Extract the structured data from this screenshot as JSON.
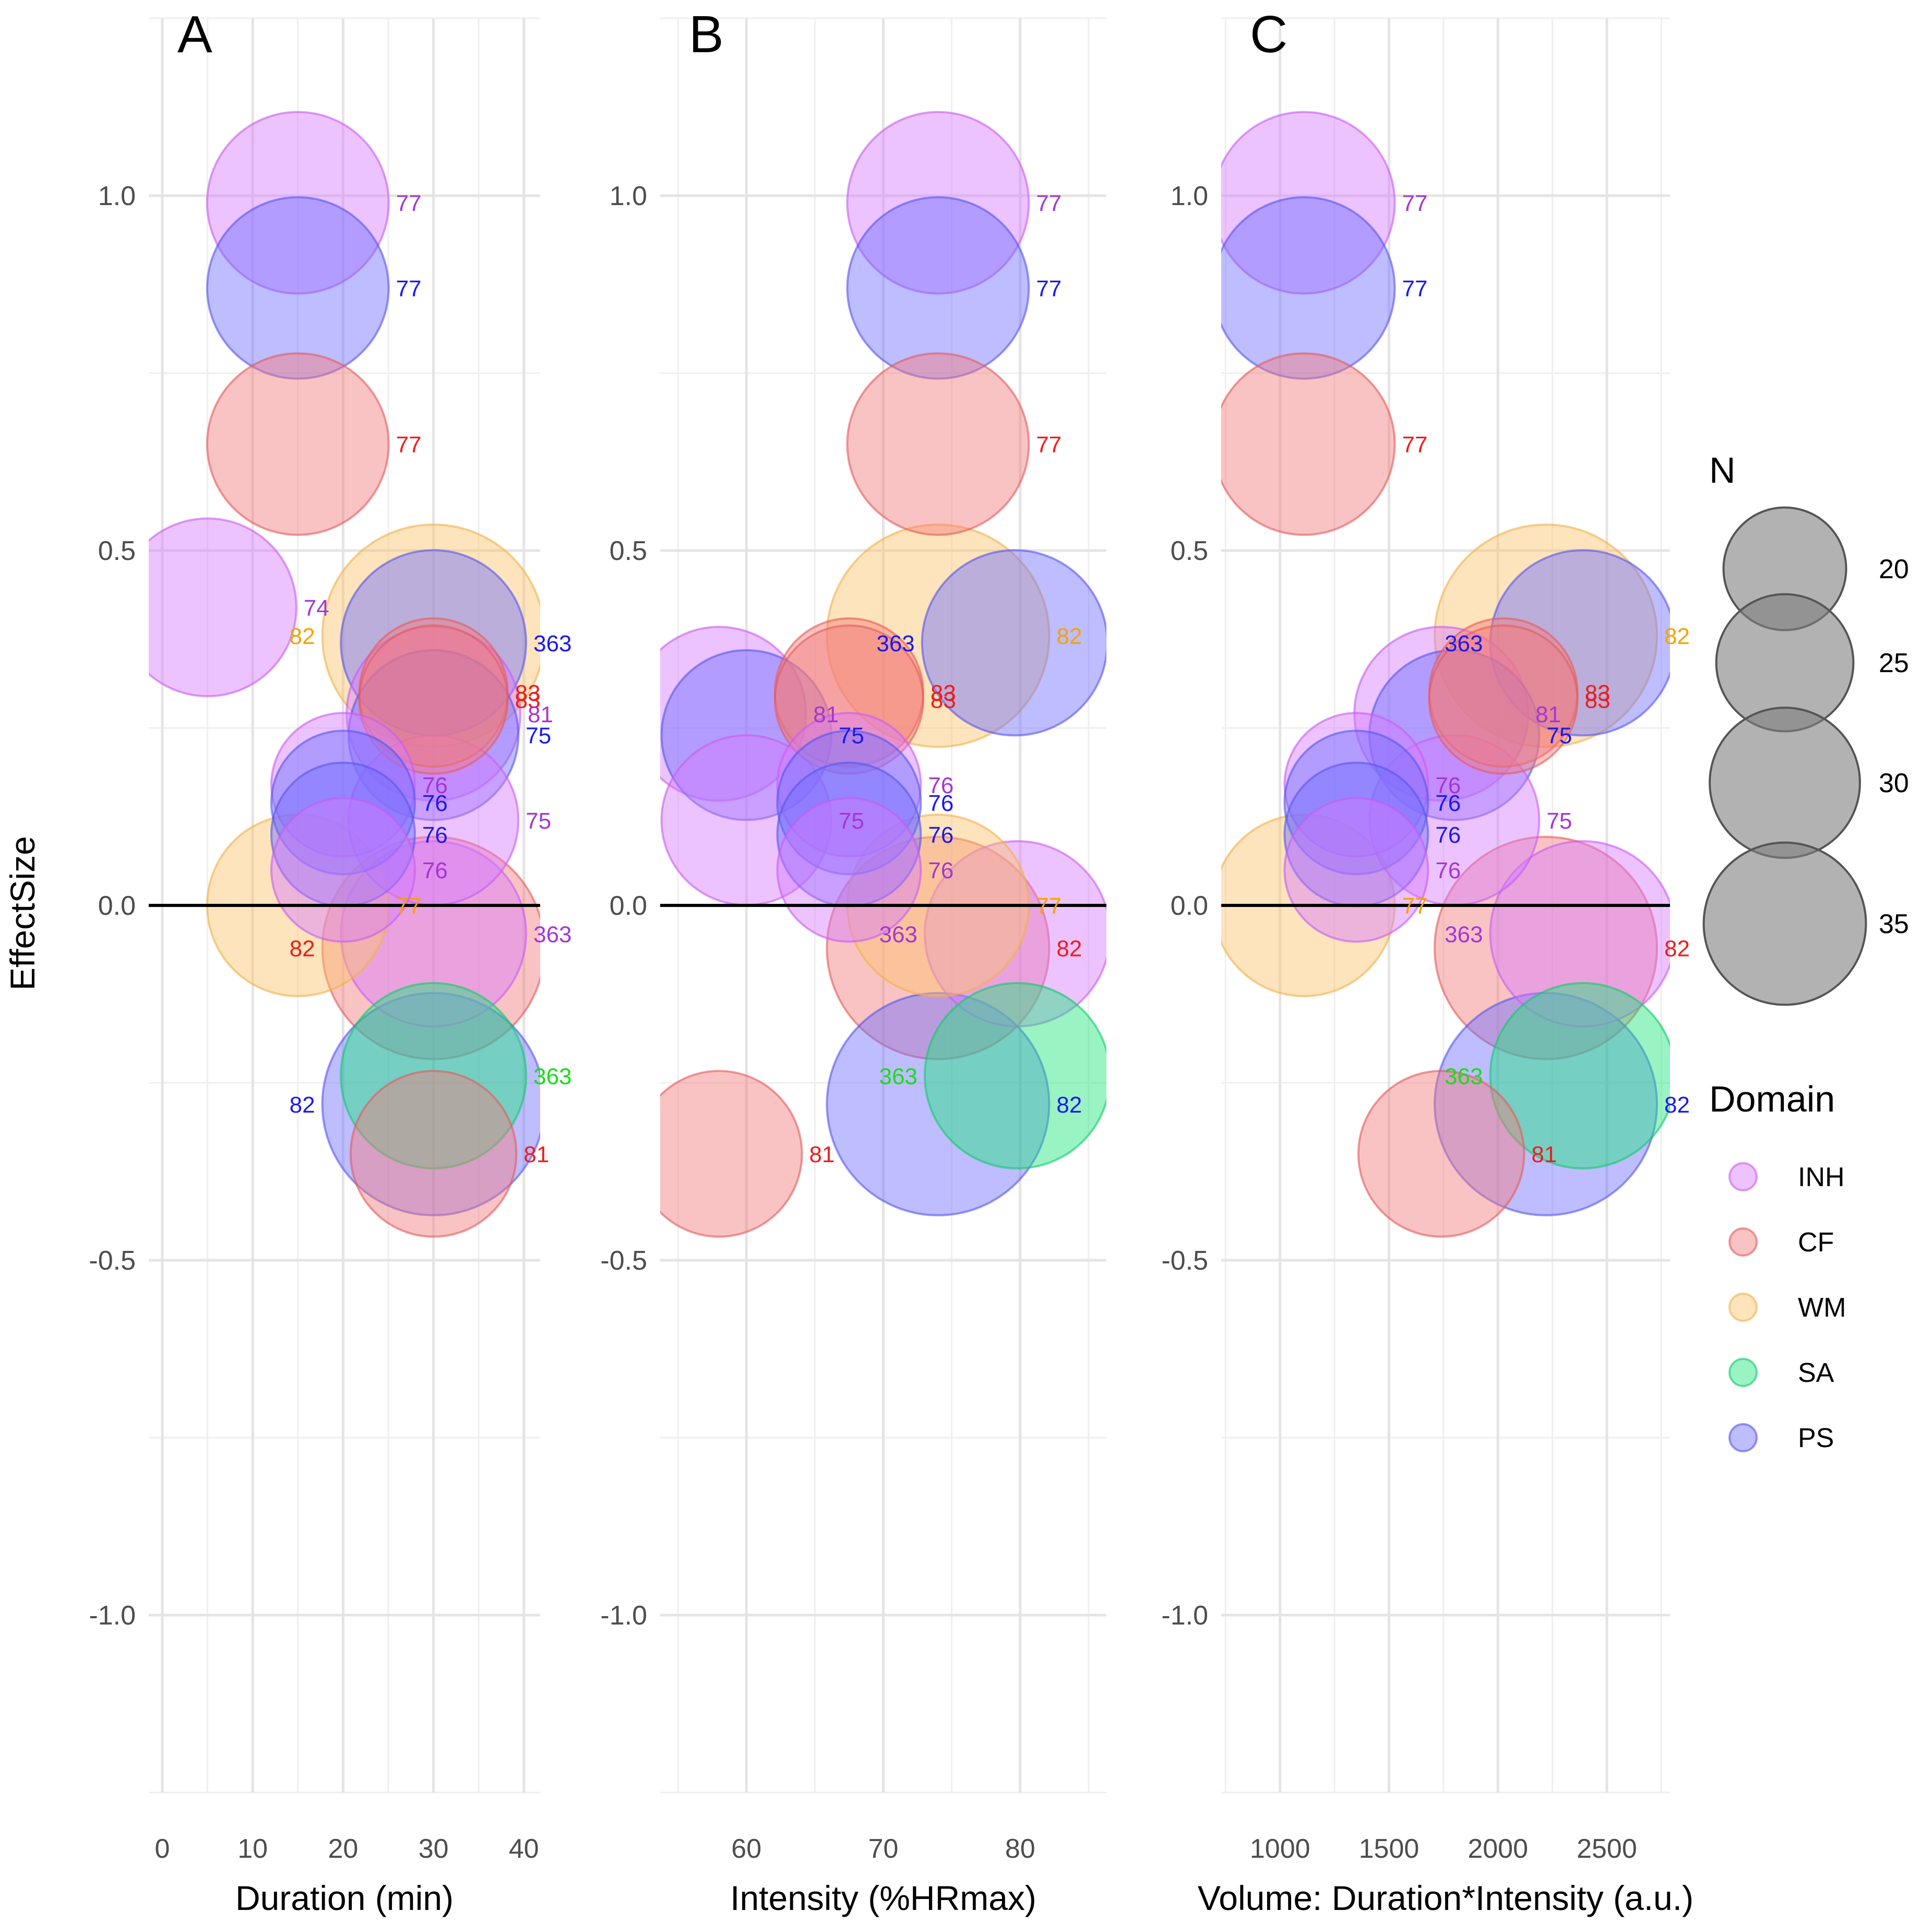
{
  "figure": {
    "ylabel": "EffectSize",
    "yticks": [
      1.0,
      0.5,
      0.0,
      -0.5,
      -1.0
    ],
    "ytick_labels": [
      "1.0",
      "0.5",
      "0.0",
      "-0.5",
      "-1.0"
    ],
    "zero_line": 0
  },
  "legend": {
    "size_title": "N",
    "size_entries": [
      {
        "n": 20,
        "label": "20"
      },
      {
        "n": 25,
        "label": "25"
      },
      {
        "n": 30,
        "label": "30"
      },
      {
        "n": 35,
        "label": "35"
      }
    ],
    "domain_title": "Domain",
    "domains": [
      {
        "key": "INH",
        "label": "INH",
        "fill": "#d77bff",
        "stroke": "#c65cf2",
        "text": "#a436d6"
      },
      {
        "key": "CF",
        "label": "CF",
        "fill": "#f57a7a",
        "stroke": "#e55a5a",
        "text": "#f01c1c"
      },
      {
        "key": "WM",
        "label": "WM",
        "fill": "#fcc46a",
        "stroke": "#f0b04a",
        "text": "#f5a300"
      },
      {
        "key": "SA",
        "label": "SA",
        "fill": "#1ee57a",
        "stroke": "#10c96a",
        "text": "#16e016"
      },
      {
        "key": "PS",
        "label": "PS",
        "fill": "#6c6cff",
        "stroke": "#5555ee",
        "text": "#1a1aee"
      }
    ]
  },
  "chart_data": [
    {
      "panel": "A",
      "type": "scatter",
      "title": "A",
      "xlabel": "Duration (min)",
      "ylabel": "EffectSize",
      "xlim": [
        -1.5,
        41.8
      ],
      "ylim": [
        -1.25,
        1.25
      ],
      "xticks": [
        0,
        10,
        20,
        30,
        40
      ],
      "xtick_labels": [
        "0",
        "10",
        "20",
        "30",
        "40"
      ],
      "points": [
        {
          "domain": "INH",
          "x": 15,
          "y": 0.99,
          "n": 24,
          "label": "77"
        },
        {
          "domain": "PS",
          "x": 15,
          "y": 0.87,
          "n": 24,
          "label": "77"
        },
        {
          "domain": "CF",
          "x": 15,
          "y": 0.65,
          "n": 24,
          "label": "77"
        },
        {
          "domain": "INH",
          "x": 5,
          "y": 0.42,
          "n": 23,
          "label": "74"
        },
        {
          "domain": "WM",
          "x": 30,
          "y": 0.38,
          "n": 36,
          "label": "82"
        },
        {
          "domain": "PS",
          "x": 30,
          "y": 0.37,
          "n": 25,
          "label": "363"
        },
        {
          "domain": "CF",
          "x": 30,
          "y": 0.3,
          "n": 16,
          "label": "83"
        },
        {
          "domain": "CF",
          "x": 30,
          "y": 0.29,
          "n": 16,
          "label": "83"
        },
        {
          "domain": "INH",
          "x": 30,
          "y": 0.27,
          "n": 22,
          "label": "81"
        },
        {
          "domain": "PS",
          "x": 30,
          "y": 0.24,
          "n": 21,
          "label": "75"
        },
        {
          "domain": "INH",
          "x": 20,
          "y": 0.17,
          "n": 15,
          "label": "76"
        },
        {
          "domain": "PS",
          "x": 20,
          "y": 0.145,
          "n": 15,
          "label": "76"
        },
        {
          "domain": "INH",
          "x": 30,
          "y": 0.12,
          "n": 21,
          "label": "75"
        },
        {
          "domain": "PS",
          "x": 20,
          "y": 0.1,
          "n": 15,
          "label": "76"
        },
        {
          "domain": "INH",
          "x": 20,
          "y": 0.05,
          "n": 15,
          "label": "76"
        },
        {
          "domain": "WM",
          "x": 15,
          "y": 0.0,
          "n": 24,
          "label": "77"
        },
        {
          "domain": "INH",
          "x": 30,
          "y": -0.04,
          "n": 25,
          "label": "363"
        },
        {
          "domain": "CF",
          "x": 30,
          "y": -0.06,
          "n": 36,
          "label": "82"
        },
        {
          "domain": "SA",
          "x": 30,
          "y": -0.24,
          "n": 25,
          "label": "363"
        },
        {
          "domain": "PS",
          "x": 30,
          "y": -0.28,
          "n": 36,
          "label": "82"
        },
        {
          "domain": "CF",
          "x": 30,
          "y": -0.35,
          "n": 20,
          "label": "81"
        }
      ]
    },
    {
      "panel": "B",
      "type": "scatter",
      "title": "B",
      "xlabel": "Intensity (%HRmax)",
      "ylabel": "",
      "xlim": [
        53.7,
        86.3
      ],
      "ylim": [
        -1.25,
        1.25
      ],
      "xticks": [
        60,
        70,
        80
      ],
      "xtick_labels": [
        "60",
        "70",
        "80"
      ],
      "points": [
        {
          "domain": "INH",
          "x": 74,
          "y": 0.99,
          "n": 24,
          "label": "77"
        },
        {
          "domain": "PS",
          "x": 74,
          "y": 0.87,
          "n": 24,
          "label": "77"
        },
        {
          "domain": "CF",
          "x": 74,
          "y": 0.65,
          "n": 24,
          "label": "77"
        },
        {
          "domain": "WM",
          "x": 74,
          "y": 0.38,
          "n": 36,
          "label": "82"
        },
        {
          "domain": "PS",
          "x": 79.6,
          "y": 0.37,
          "n": 25,
          "label": "363"
        },
        {
          "domain": "CF",
          "x": 67.5,
          "y": 0.3,
          "n": 16,
          "label": "83"
        },
        {
          "domain": "CF",
          "x": 67.5,
          "y": 0.29,
          "n": 16,
          "label": "83"
        },
        {
          "domain": "INH",
          "x": 58,
          "y": 0.27,
          "n": 22,
          "label": "81"
        },
        {
          "domain": "PS",
          "x": 60,
          "y": 0.24,
          "n": 21,
          "label": "75"
        },
        {
          "domain": "INH",
          "x": 67.5,
          "y": 0.17,
          "n": 15,
          "label": "76"
        },
        {
          "domain": "PS",
          "x": 67.5,
          "y": 0.145,
          "n": 15,
          "label": "76"
        },
        {
          "domain": "INH",
          "x": 60,
          "y": 0.12,
          "n": 21,
          "label": "75"
        },
        {
          "domain": "PS",
          "x": 67.5,
          "y": 0.1,
          "n": 15,
          "label": "76"
        },
        {
          "domain": "INH",
          "x": 67.5,
          "y": 0.05,
          "n": 15,
          "label": "76"
        },
        {
          "domain": "WM",
          "x": 74,
          "y": 0.0,
          "n": 24,
          "label": "77"
        },
        {
          "domain": "INH",
          "x": 79.8,
          "y": -0.04,
          "n": 25,
          "label": "363"
        },
        {
          "domain": "CF",
          "x": 74,
          "y": -0.06,
          "n": 36,
          "label": "82"
        },
        {
          "domain": "SA",
          "x": 79.8,
          "y": -0.24,
          "n": 25,
          "label": "363"
        },
        {
          "domain": "PS",
          "x": 74,
          "y": -0.28,
          "n": 36,
          "label": "82"
        },
        {
          "domain": "CF",
          "x": 58,
          "y": -0.35,
          "n": 20,
          "label": "81"
        }
      ]
    },
    {
      "panel": "C",
      "type": "scatter",
      "title": "C",
      "xlabel": "Volume: Duration*Intensity (a.u.)",
      "ylabel": "",
      "xlim": [
        730,
        2790
      ],
      "ylim": [
        -1.25,
        1.25
      ],
      "xticks": [
        1000,
        1500,
        2000,
        2500
      ],
      "xtick_labels": [
        "1000",
        "1500",
        "2000",
        "2500"
      ],
      "points": [
        {
          "domain": "INH",
          "x": 1110,
          "y": 0.99,
          "n": 24,
          "label": "77"
        },
        {
          "domain": "PS",
          "x": 1110,
          "y": 0.87,
          "n": 24,
          "label": "77"
        },
        {
          "domain": "CF",
          "x": 1110,
          "y": 0.65,
          "n": 24,
          "label": "77"
        },
        {
          "domain": "WM",
          "x": 2220,
          "y": 0.38,
          "n": 36,
          "label": "82"
        },
        {
          "domain": "PS",
          "x": 2390,
          "y": 0.37,
          "n": 25,
          "label": "363"
        },
        {
          "domain": "CF",
          "x": 2025,
          "y": 0.3,
          "n": 16,
          "label": "83"
        },
        {
          "domain": "CF",
          "x": 2025,
          "y": 0.29,
          "n": 16,
          "label": "83"
        },
        {
          "domain": "INH",
          "x": 1740,
          "y": 0.27,
          "n": 22,
          "label": "81"
        },
        {
          "domain": "PS",
          "x": 1800,
          "y": 0.24,
          "n": 21,
          "label": "75"
        },
        {
          "domain": "INH",
          "x": 1350,
          "y": 0.17,
          "n": 15,
          "label": "76"
        },
        {
          "domain": "PS",
          "x": 1350,
          "y": 0.145,
          "n": 15,
          "label": "76"
        },
        {
          "domain": "INH",
          "x": 1800,
          "y": 0.12,
          "n": 21,
          "label": "75"
        },
        {
          "domain": "PS",
          "x": 1350,
          "y": 0.1,
          "n": 15,
          "label": "76"
        },
        {
          "domain": "INH",
          "x": 1350,
          "y": 0.05,
          "n": 15,
          "label": "76"
        },
        {
          "domain": "WM",
          "x": 1110,
          "y": 0.0,
          "n": 24,
          "label": "77"
        },
        {
          "domain": "INH",
          "x": 2390,
          "y": -0.04,
          "n": 25,
          "label": "363"
        },
        {
          "domain": "CF",
          "x": 2220,
          "y": -0.06,
          "n": 36,
          "label": "82"
        },
        {
          "domain": "SA",
          "x": 2390,
          "y": -0.24,
          "n": 25,
          "label": "363"
        },
        {
          "domain": "PS",
          "x": 2220,
          "y": -0.28,
          "n": 36,
          "label": "82"
        },
        {
          "domain": "CF",
          "x": 1740,
          "y": -0.35,
          "n": 20,
          "label": "81"
        }
      ]
    }
  ]
}
